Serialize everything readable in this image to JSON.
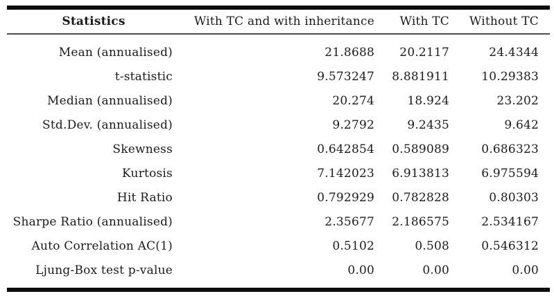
{
  "table": {
    "columns": [
      {
        "label": "Statistics"
      },
      {
        "label": "With TC and with inheritance"
      },
      {
        "label": "With TC"
      },
      {
        "label": "Without TC"
      }
    ],
    "rows": [
      {
        "label": "Mean (annualised)",
        "values": [
          "21.8688",
          "20.2117",
          "24.4344"
        ]
      },
      {
        "label": "t-statistic",
        "values": [
          "9.573247",
          "8.881911",
          "10.29383"
        ]
      },
      {
        "label": "Median (annualised)",
        "values": [
          "20.274",
          "18.924",
          "23.202"
        ]
      },
      {
        "label": "Std.Dev. (annualised)",
        "values": [
          "9.2792",
          "9.2435",
          "9.642"
        ]
      },
      {
        "label": "Skewness",
        "values": [
          "0.642854",
          "0.589089",
          "0.686323"
        ]
      },
      {
        "label": "Kurtosis",
        "values": [
          "7.142023",
          "6.913813",
          "6.975594"
        ]
      },
      {
        "label": "Hit Ratio",
        "values": [
          "0.792929",
          "0.782828",
          "0.80303"
        ]
      },
      {
        "label": "Sharpe Ratio (annualised)",
        "values": [
          "2.35677",
          "2.186575",
          "2.534167"
        ]
      },
      {
        "label": "Auto Correlation AC(1)",
        "values": [
          "0.5102",
          "0.508",
          "0.546312"
        ]
      },
      {
        "label": "Ljung-Box test p-value",
        "values": [
          "0.00",
          "0.00",
          "0.00"
        ]
      }
    ]
  },
  "chart_data": {
    "type": "table",
    "title": "",
    "columns": [
      "Statistics",
      "With TC and with inheritance",
      "With TC",
      "Without TC"
    ],
    "rows": [
      [
        "Mean (annualised)",
        21.8688,
        20.2117,
        24.4344
      ],
      [
        "t-statistic",
        9.573247,
        8.881911,
        10.29383
      ],
      [
        "Median (annualised)",
        20.274,
        18.924,
        23.202
      ],
      [
        "Std.Dev. (annualised)",
        9.2792,
        9.2435,
        9.642
      ],
      [
        "Skewness",
        0.642854,
        0.589089,
        0.686323
      ],
      [
        "Kurtosis",
        7.142023,
        6.913813,
        6.975594
      ],
      [
        "Hit Ratio",
        0.792929,
        0.782828,
        0.80303
      ],
      [
        "Sharpe Ratio (annualised)",
        2.35677,
        2.186575,
        2.534167
      ],
      [
        "Auto Correlation AC(1)",
        0.5102,
        0.508,
        0.546312
      ],
      [
        "Ljung-Box test p-value",
        0.0,
        0.0,
        0.0
      ]
    ]
  },
  "colors": {
    "rule_heavy": "#0c0c0c",
    "rule_light": "#4a4a4a",
    "text": "#1b1b1b",
    "background": "#ffffff"
  }
}
